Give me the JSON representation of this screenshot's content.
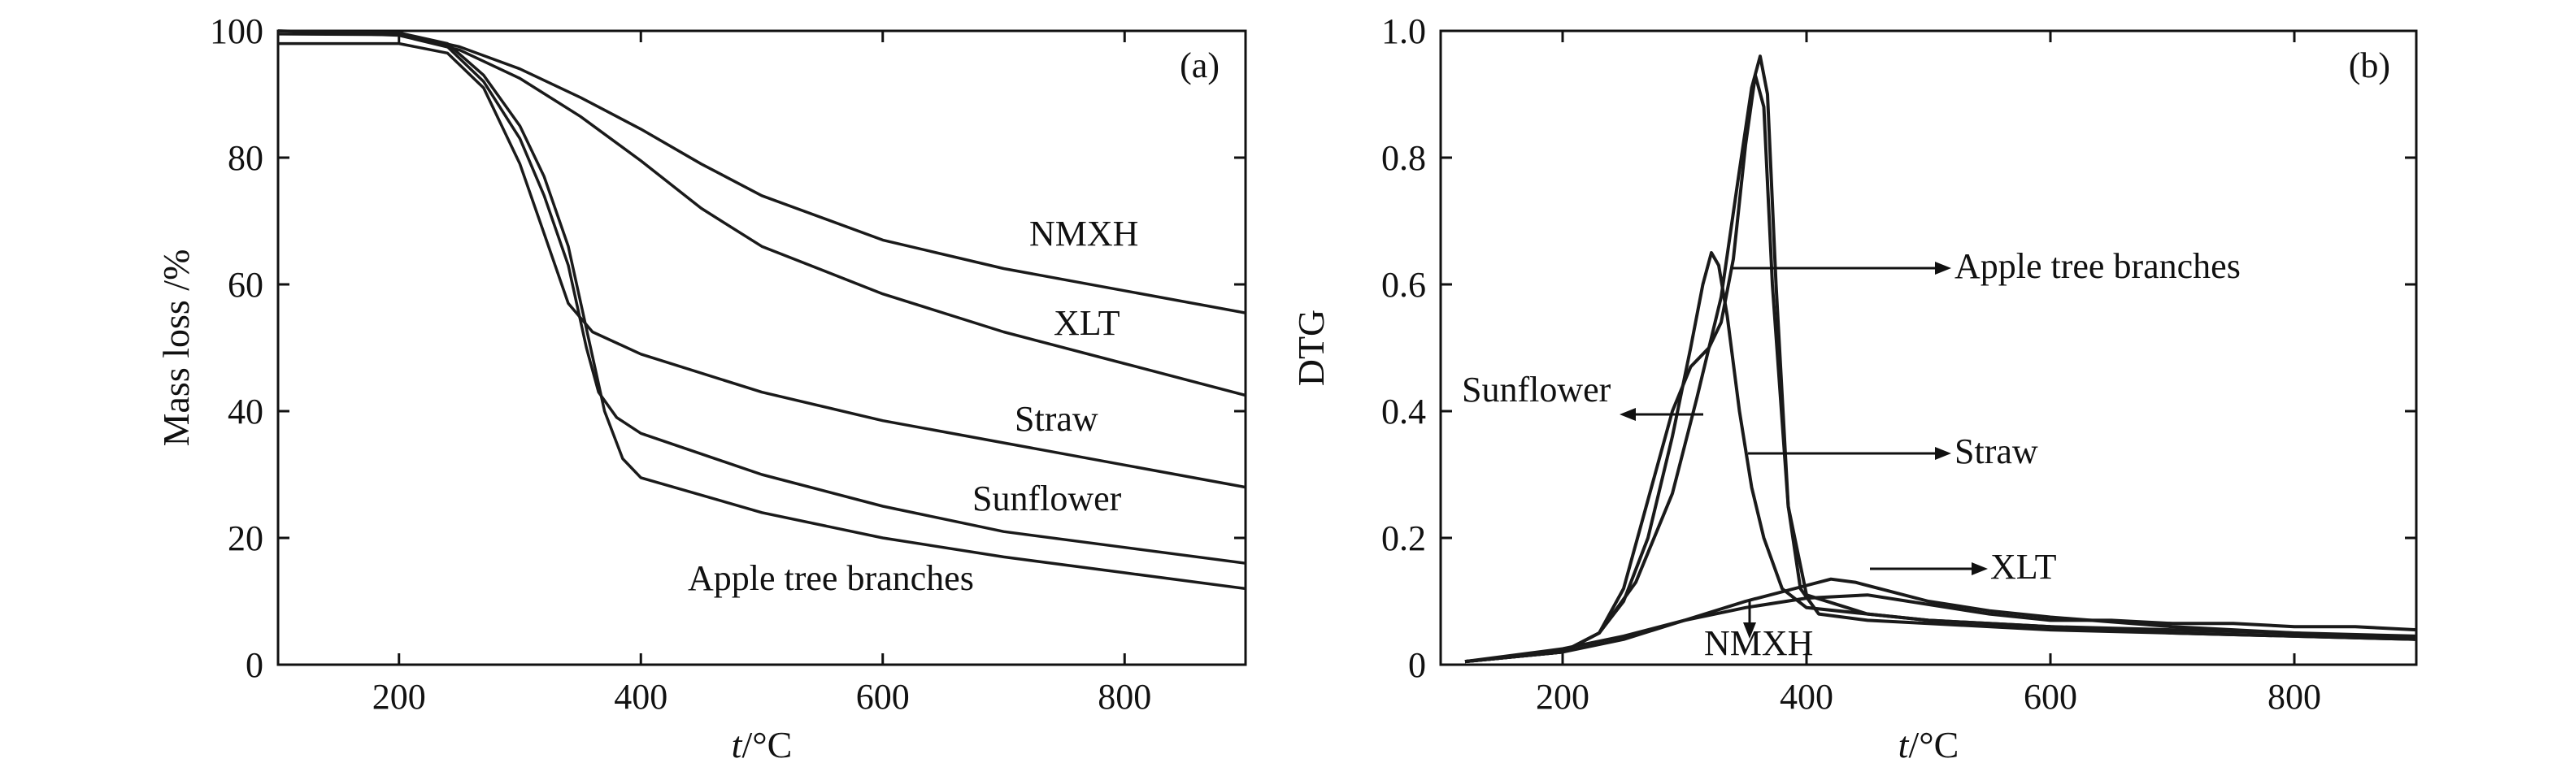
{
  "chart_data": [
    {
      "type": "line",
      "panel_label": "(a)",
      "xlabel_italic": "t",
      "xlabel_unit": "/°C",
      "ylabel": "Mass loss /%",
      "xlim": [
        100,
        900
      ],
      "ylim": [
        0,
        100
      ],
      "xticks": [
        200,
        400,
        600,
        800
      ],
      "yticks": [
        0,
        20,
        40,
        60,
        80,
        100
      ],
      "series": [
        {
          "name": "NMXH",
          "x": [
            100,
            200,
            250,
            300,
            350,
            400,
            450,
            500,
            600,
            700,
            800,
            900
          ],
          "y": [
            100,
            99.6,
            97.5,
            94,
            89.5,
            84.5,
            79,
            74,
            67,
            62.5,
            59,
            55.5
          ]
        },
        {
          "name": "XLT",
          "x": [
            100,
            200,
            250,
            300,
            350,
            400,
            450,
            500,
            600,
            700,
            800,
            900
          ],
          "y": [
            100,
            99.3,
            97,
            92.5,
            86.5,
            79.5,
            72,
            66,
            58.5,
            52.5,
            47.5,
            42.5
          ]
        },
        {
          "name": "Straw",
          "x": [
            100,
            200,
            240,
            270,
            300,
            320,
            340,
            360,
            400,
            500,
            600,
            700,
            800,
            900
          ],
          "y": [
            98,
            98,
            96.5,
            91,
            79,
            68,
            57,
            52.5,
            49,
            43,
            38.5,
            35,
            31.5,
            28
          ]
        },
        {
          "name": "Sunflower",
          "x": [
            100,
            200,
            240,
            270,
            300,
            320,
            340,
            355,
            365,
            380,
            400,
            500,
            600,
            700,
            800,
            900
          ],
          "y": [
            99.5,
            99.4,
            97.5,
            92,
            83,
            74,
            63,
            50,
            43,
            39,
            36.5,
            30,
            25,
            21,
            18.5,
            16
          ]
        },
        {
          "name": "Apple tree branches",
          "x": [
            100,
            200,
            240,
            270,
            300,
            320,
            340,
            355,
            370,
            385,
            400,
            500,
            600,
            700,
            800,
            900
          ],
          "y": [
            100,
            99.7,
            98,
            93,
            85,
            77,
            66,
            53,
            40,
            32.5,
            29.5,
            24,
            20,
            17,
            14.5,
            12
          ]
        }
      ],
      "annotations": [
        "NMXH",
        "XLT",
        "Straw",
        "Sunflower",
        "Apple tree branches"
      ]
    },
    {
      "type": "line",
      "panel_label": "(b)",
      "xlabel_italic": "t",
      "xlabel_unit": "/°C",
      "ylabel": "DTG",
      "xlim": [
        100,
        900
      ],
      "ylim": [
        0,
        1.0
      ],
      "xticks": [
        200,
        400,
        600,
        800
      ],
      "yticks": [
        0,
        0.2,
        0.4,
        0.6,
        0.8,
        1.0
      ],
      "ytick_labels": [
        "0",
        "0.2",
        "0.4",
        "0.6",
        "0.8",
        "1.0"
      ],
      "series": [
        {
          "name": "Apple tree branches",
          "x": [
            120,
            200,
            230,
            260,
            290,
            310,
            330,
            345,
            355,
            362,
            368,
            375,
            385,
            395,
            410,
            450,
            500,
            600,
            700,
            800,
            900
          ],
          "y": [
            0.005,
            0.02,
            0.05,
            0.13,
            0.27,
            0.42,
            0.58,
            0.78,
            0.91,
            0.96,
            0.9,
            0.6,
            0.25,
            0.12,
            0.08,
            0.07,
            0.065,
            0.055,
            0.05,
            0.045,
            0.04
          ]
        },
        {
          "name": "Straw",
          "x": [
            120,
            200,
            230,
            250,
            270,
            290,
            305,
            315,
            322,
            328,
            335,
            345,
            355,
            365,
            380,
            400,
            450,
            500,
            600,
            700,
            800,
            900
          ],
          "y": [
            0.005,
            0.02,
            0.05,
            0.1,
            0.2,
            0.36,
            0.5,
            0.6,
            0.65,
            0.63,
            0.55,
            0.4,
            0.28,
            0.2,
            0.12,
            0.09,
            0.08,
            0.07,
            0.06,
            0.05,
            0.045,
            0.04
          ]
        },
        {
          "name": "Sunflower",
          "x": [
            120,
            200,
            230,
            250,
            270,
            290,
            305,
            320,
            330,
            340,
            350,
            358,
            365,
            372,
            385,
            400,
            450,
            500,
            600,
            700,
            800,
            900
          ],
          "y": [
            0.005,
            0.02,
            0.05,
            0.12,
            0.26,
            0.4,
            0.47,
            0.5,
            0.54,
            0.64,
            0.82,
            0.93,
            0.88,
            0.6,
            0.25,
            0.11,
            0.08,
            0.07,
            0.06,
            0.055,
            0.05,
            0.045
          ]
        },
        {
          "name": "XLT",
          "x": [
            120,
            200,
            250,
            300,
            350,
            400,
            420,
            440,
            460,
            500,
            550,
            600,
            700,
            800,
            900
          ],
          "y": [
            0.005,
            0.02,
            0.04,
            0.07,
            0.1,
            0.125,
            0.135,
            0.13,
            0.12,
            0.1,
            0.085,
            0.075,
            0.06,
            0.05,
            0.04
          ]
        },
        {
          "name": "NMXH",
          "x": [
            120,
            200,
            250,
            300,
            350,
            400,
            450,
            500,
            550,
            600,
            650,
            700,
            750,
            800,
            850,
            900
          ],
          "y": [
            0.005,
            0.025,
            0.045,
            0.07,
            0.09,
            0.105,
            0.11,
            0.095,
            0.08,
            0.07,
            0.07,
            0.065,
            0.065,
            0.06,
            0.06,
            0.055
          ]
        }
      ],
      "annotations": [
        "Apple tree branches",
        "Sunflower",
        "Straw",
        "XLT",
        "NMXH"
      ]
    }
  ]
}
